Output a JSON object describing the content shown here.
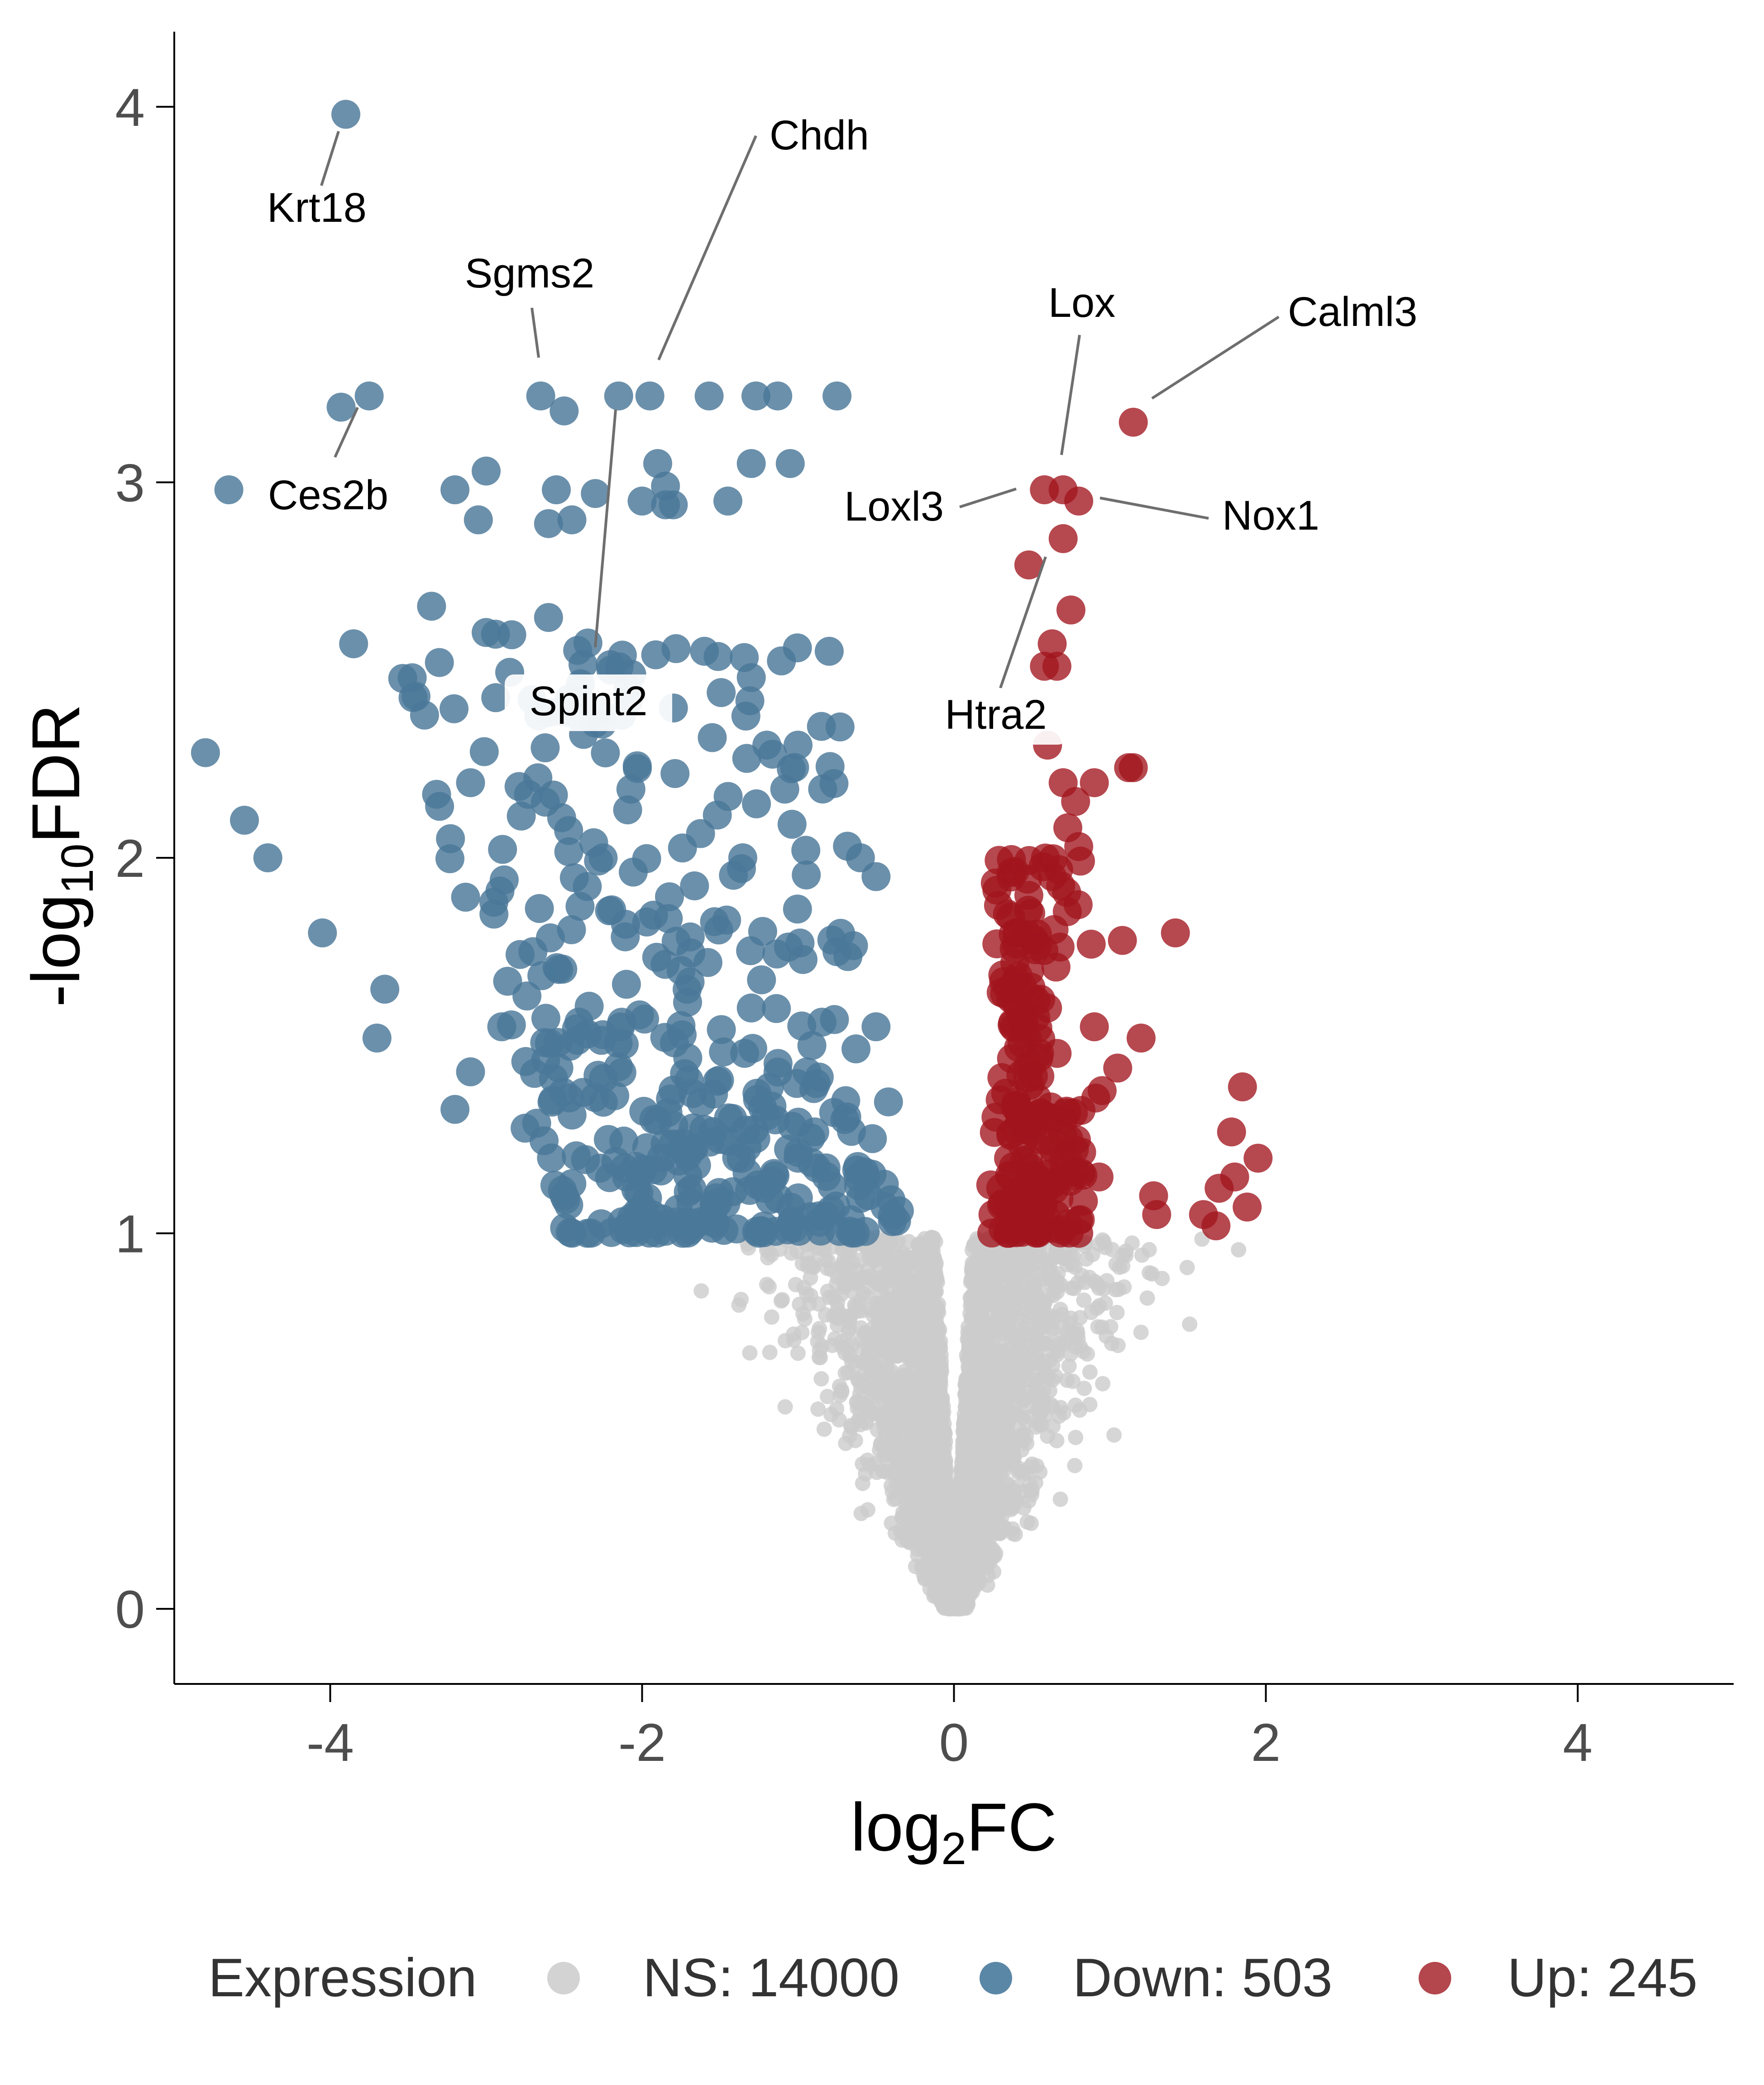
{
  "chart_data": {
    "type": "scatter",
    "title": "",
    "xlabel_base": "log",
    "xlabel_sub": "2",
    "xlabel_rest": "FC",
    "ylabel_prefix": "-log",
    "ylabel_sub": "10",
    "ylabel_rest": "FDR",
    "xlim": [
      -5,
      5
    ],
    "ylim": [
      -0.2,
      4.2
    ],
    "x_ticks": [
      -4,
      -2,
      0,
      2,
      4
    ],
    "x_tick_labels": [
      "-4",
      "-2",
      "0",
      "2",
      "4"
    ],
    "y_ticks": [
      0,
      1,
      2,
      3,
      4
    ],
    "y_tick_labels": [
      "0",
      "1",
      "2",
      "3",
      "4"
    ],
    "grid": false,
    "legend": {
      "title": "Expression",
      "placement": "bottom",
      "entries": [
        {
          "label": "NS: 14000",
          "color": "#d3d3d3"
        },
        {
          "label": "Down: 503",
          "color": "#5b87a6"
        },
        {
          "label": "Up: 245",
          "color": "#b4464d"
        }
      ]
    },
    "series": [
      {
        "name": "NS",
        "color": "#cccccc",
        "count": 14000,
        "x_range": [
          -3.0,
          2.1
        ],
        "y_range": [
          0,
          1.0
        ]
      },
      {
        "name": "Down",
        "color": "#4a7799",
        "count": 503,
        "sample_points": [
          [
            -3.9,
            3.98
          ],
          [
            -3.93,
            3.2
          ],
          [
            -3.75,
            3.23
          ],
          [
            -4.65,
            2.98
          ],
          [
            -2.65,
            3.23
          ],
          [
            -2.5,
            3.19
          ],
          [
            -2.15,
            3.23
          ],
          [
            -1.95,
            3.23
          ],
          [
            -1.57,
            3.23
          ],
          [
            -1.27,
            3.23
          ],
          [
            -1.13,
            3.23
          ],
          [
            -0.75,
            3.23
          ],
          [
            -3.0,
            3.03
          ],
          [
            -3.2,
            2.98
          ],
          [
            -3.05,
            2.9
          ],
          [
            -2.3,
            2.97
          ],
          [
            -2.55,
            2.98
          ],
          [
            -1.9,
            3.05
          ],
          [
            -1.85,
            2.99
          ],
          [
            -2.0,
            2.95
          ],
          [
            -1.8,
            2.94
          ],
          [
            -1.45,
            2.95
          ],
          [
            -1.3,
            3.05
          ],
          [
            -1.05,
            3.05
          ],
          [
            -2.6,
            2.89
          ],
          [
            -2.45,
            2.9
          ],
          [
            -1.85,
            2.94
          ],
          [
            -3.35,
            2.67
          ],
          [
            -3.85,
            2.57
          ],
          [
            -2.6,
            2.64
          ],
          [
            -3.0,
            2.6
          ],
          [
            -3.3,
            2.52
          ],
          [
            -3.45,
            2.43
          ],
          [
            -2.2,
            2.5
          ],
          [
            -1.6,
            2.55
          ],
          [
            -1.3,
            2.48
          ],
          [
            -0.8,
            2.55
          ],
          [
            -4.8,
            2.28
          ],
          [
            -4.55,
            2.1
          ],
          [
            -4.4,
            2.0
          ],
          [
            -4.05,
            1.8
          ],
          [
            -3.7,
            1.52
          ],
          [
            -3.65,
            1.65
          ],
          [
            -3.2,
            1.33
          ],
          [
            -3.1,
            1.43
          ],
          [
            -2.9,
            1.55
          ],
          [
            -2.75,
            1.28
          ],
          [
            -1.55,
            2.32
          ],
          [
            -1.2,
            2.3
          ],
          [
            -1.0,
            2.3
          ],
          [
            -0.85,
            2.35
          ],
          [
            -0.95,
            2.02
          ],
          [
            -0.6,
            2.0
          ],
          [
            -0.5,
            1.95
          ],
          [
            -0.75,
            1.75
          ],
          [
            -0.5,
            1.55
          ],
          [
            -0.42,
            1.35
          ],
          [
            -0.35,
            1.06
          ],
          [
            -0.55,
            1.1
          ],
          [
            -1.0,
            1.2
          ],
          [
            -1.5,
            1.25
          ],
          [
            -2.1,
            1.15
          ],
          [
            -2.5,
            1.1
          ],
          [
            -2.35,
            1.0
          ],
          [
            -1.9,
            1.3
          ],
          [
            -1.75,
            1.7
          ],
          [
            -1.3,
            1.6
          ],
          [
            -2.7,
            1.75
          ],
          [
            -2.95,
            1.85
          ],
          [
            -3.1,
            2.2
          ],
          [
            -2.25,
            2.0
          ]
        ]
      },
      {
        "name": "Up",
        "color": "#a1151d",
        "count": 245,
        "sample_points": [
          [
            1.15,
            3.16
          ],
          [
            0.7,
            2.98
          ],
          [
            0.58,
            2.98
          ],
          [
            0.8,
            2.95
          ],
          [
            0.7,
            2.85
          ],
          [
            0.48,
            2.78
          ],
          [
            0.75,
            2.66
          ],
          [
            0.63,
            2.57
          ],
          [
            0.58,
            2.51
          ],
          [
            0.66,
            2.51
          ],
          [
            1.12,
            2.24
          ],
          [
            1.15,
            2.24
          ],
          [
            0.9,
            2.2
          ],
          [
            0.6,
            2.3
          ],
          [
            0.7,
            2.2
          ],
          [
            0.78,
            2.15
          ],
          [
            0.73,
            2.08
          ],
          [
            0.8,
            2.03
          ],
          [
            0.48,
            1.9
          ],
          [
            0.63,
            1.95
          ],
          [
            1.42,
            1.8
          ],
          [
            1.08,
            1.78
          ],
          [
            0.88,
            1.77
          ],
          [
            0.35,
            1.65
          ],
          [
            0.6,
            1.6
          ],
          [
            1.2,
            1.52
          ],
          [
            0.9,
            1.55
          ],
          [
            1.05,
            1.44
          ],
          [
            0.95,
            1.38
          ],
          [
            1.85,
            1.39
          ],
          [
            1.78,
            1.27
          ],
          [
            1.95,
            1.2
          ],
          [
            1.8,
            1.15
          ],
          [
            1.7,
            1.12
          ],
          [
            1.88,
            1.07
          ],
          [
            1.28,
            1.1
          ],
          [
            1.3,
            1.05
          ],
          [
            1.6,
            1.05
          ],
          [
            1.68,
            1.02
          ],
          [
            0.93,
            1.15
          ],
          [
            0.3,
            1.12
          ],
          [
            0.25,
            1.05
          ],
          [
            0.4,
            1.35
          ],
          [
            0.5,
            1.45
          ],
          [
            0.55,
            1.25
          ],
          [
            0.65,
            1.05
          ],
          [
            0.7,
            1.3
          ],
          [
            0.45,
            1.55
          ],
          [
            0.35,
            1.2
          ],
          [
            0.8,
            1.0
          ]
        ]
      }
    ],
    "annotations": [
      {
        "label": "Krt18",
        "x": -3.9,
        "y": 3.98
      },
      {
        "label": "Chdh",
        "x": -1.95,
        "y": 3.23
      },
      {
        "label": "Sgms2",
        "x": -2.65,
        "y": 3.23
      },
      {
        "label": "Ces2b",
        "x": -3.93,
        "y": 3.2
      },
      {
        "label": "Spint2",
        "x": -2.15,
        "y": 3.23
      },
      {
        "label": "Lox",
        "x": 0.7,
        "y": 2.98
      },
      {
        "label": "Calml3",
        "x": 1.15,
        "y": 3.16
      },
      {
        "label": "Loxl3",
        "x": 0.48,
        "y": 2.98
      },
      {
        "label": "Nox1",
        "x": 0.8,
        "y": 2.95
      },
      {
        "label": "Htra2",
        "x": 0.7,
        "y": 2.85
      }
    ]
  }
}
